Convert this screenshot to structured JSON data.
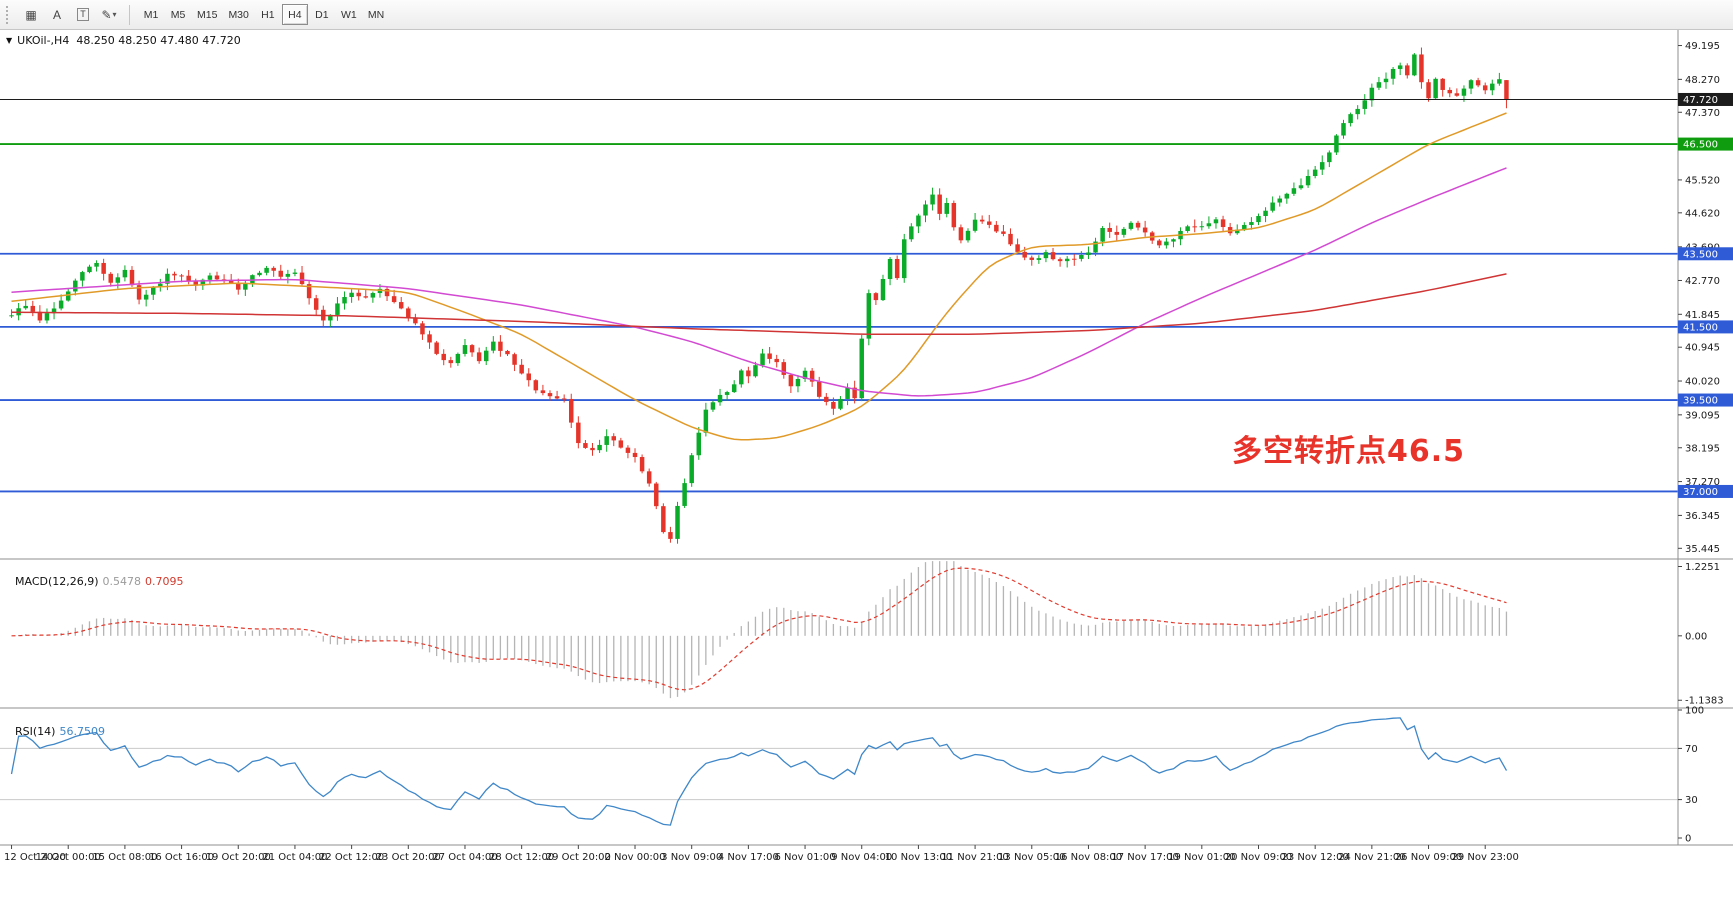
{
  "toolbar": {
    "icons": [
      {
        "name": "windows-grid-icon",
        "glyph": "▦"
      },
      {
        "name": "cursor-tool-icon",
        "glyph": "A"
      },
      {
        "name": "text-tool-icon",
        "glyph": "T"
      },
      {
        "name": "draw-tool-icon",
        "glyph": "✎"
      },
      {
        "name": "dropdown-caret-icon",
        "glyph": "▾"
      }
    ],
    "timeframes": [
      "M1",
      "M5",
      "M15",
      "M30",
      "H1",
      "H4",
      "D1",
      "W1",
      "MN"
    ],
    "selected_timeframe": "H4"
  },
  "chart": {
    "dropdown_glyph": "▼",
    "symbol_ohlc_label": "UKOil-,H4  48.250 48.250 47.480 47.720",
    "annotation": "多空转折点46.5"
  },
  "chart_data": {
    "type": "candlestick",
    "symbol": "UKOil-",
    "timeframe": "H4",
    "current_ohlc": {
      "open": 48.25,
      "high": 48.25,
      "low": 47.48,
      "close": 47.72
    },
    "bar_count": 212,
    "bars_per_label": 8,
    "price_range": [
      35.18,
      49.62
    ],
    "price_axis_ticks": [
      "49.195",
      "48.270",
      "47.370",
      "45.520",
      "44.620",
      "43.690",
      "42.770",
      "41.845",
      "40.945",
      "40.020",
      "39.095",
      "38.195",
      "37.270",
      "36.345",
      "35.445"
    ],
    "time_labels": [
      "12 Oct 2020",
      "14 Oct 00:00",
      "15 Oct 08:00",
      "16 Oct 16:00",
      "19 Oct 20:00",
      "21 Oct 04:00",
      "22 Oct 12:00",
      "23 Oct 20:00",
      "27 Oct 04:00",
      "28 Oct 12:00",
      "29 Oct 20:00",
      "2 Nov 00:00",
      "3 Nov 09:00",
      "4 Nov 17:00",
      "6 Nov 01:00",
      "9 Nov 04:00",
      "10 Nov 13:00",
      "11 Nov 21:00",
      "13 Nov 05:00",
      "16 Nov 08:00",
      "17 Nov 17:00",
      "19 Nov 01:00",
      "20 Nov 09:00",
      "23 Nov 12:00",
      "24 Nov 21:00",
      "26 Nov 09:00",
      "29 Nov 23:00"
    ],
    "price_path_anchors": [
      [
        0,
        41.85
      ],
      [
        2,
        42.1
      ],
      [
        4,
        41.7
      ],
      [
        6,
        42.0
      ],
      [
        8,
        42.45
      ],
      [
        10,
        43.0
      ],
      [
        12,
        43.25
      ],
      [
        14,
        42.7
      ],
      [
        16,
        43.05
      ],
      [
        18,
        42.2
      ],
      [
        20,
        42.55
      ],
      [
        22,
        42.9
      ],
      [
        24,
        42.85
      ],
      [
        26,
        42.6
      ],
      [
        28,
        42.9
      ],
      [
        30,
        42.75
      ],
      [
        32,
        42.55
      ],
      [
        34,
        42.9
      ],
      [
        36,
        43.15
      ],
      [
        38,
        42.85
      ],
      [
        40,
        42.95
      ],
      [
        42,
        42.3
      ],
      [
        44,
        41.65
      ],
      [
        46,
        42.1
      ],
      [
        48,
        42.45
      ],
      [
        50,
        42.3
      ],
      [
        52,
        42.55
      ],
      [
        54,
        42.2
      ],
      [
        56,
        41.8
      ],
      [
        58,
        41.3
      ],
      [
        60,
        40.75
      ],
      [
        62,
        40.5
      ],
      [
        64,
        40.95
      ],
      [
        66,
        40.6
      ],
      [
        68,
        41.05
      ],
      [
        70,
        40.7
      ],
      [
        72,
        40.2
      ],
      [
        74,
        39.8
      ],
      [
        76,
        39.55
      ],
      [
        78,
        39.5
      ],
      [
        80,
        38.3
      ],
      [
        82,
        38.15
      ],
      [
        84,
        38.5
      ],
      [
        86,
        38.2
      ],
      [
        88,
        37.9
      ],
      [
        90,
        37.2
      ],
      [
        92,
        35.9
      ],
      [
        93,
        35.75
      ],
      [
        94,
        36.6
      ],
      [
        95,
        37.2
      ],
      [
        96,
        38.0
      ],
      [
        98,
        39.2
      ],
      [
        100,
        39.6
      ],
      [
        102,
        39.9
      ],
      [
        103,
        40.3
      ],
      [
        104,
        40.15
      ],
      [
        106,
        40.8
      ],
      [
        108,
        40.5
      ],
      [
        110,
        39.9
      ],
      [
        112,
        40.3
      ],
      [
        114,
        39.6
      ],
      [
        116,
        39.3
      ],
      [
        118,
        39.8
      ],
      [
        119,
        39.6
      ],
      [
        120,
        41.2
      ],
      [
        121,
        42.4
      ],
      [
        122,
        42.2
      ],
      [
        124,
        43.4
      ],
      [
        125,
        42.8
      ],
      [
        126,
        43.9
      ],
      [
        128,
        44.5
      ],
      [
        130,
        45.1
      ],
      [
        131,
        44.6
      ],
      [
        132,
        44.9
      ],
      [
        133,
        44.2
      ],
      [
        134,
        43.9
      ],
      [
        136,
        44.4
      ],
      [
        138,
        44.3
      ],
      [
        140,
        44.0
      ],
      [
        142,
        43.6
      ],
      [
        144,
        43.3
      ],
      [
        146,
        43.5
      ],
      [
        148,
        43.3
      ],
      [
        150,
        43.4
      ],
      [
        152,
        43.5
      ],
      [
        154,
        44.2
      ],
      [
        156,
        44.0
      ],
      [
        158,
        44.3
      ],
      [
        160,
        44.1
      ],
      [
        162,
        43.7
      ],
      [
        164,
        43.9
      ],
      [
        166,
        44.3
      ],
      [
        168,
        44.2
      ],
      [
        170,
        44.4
      ],
      [
        172,
        44.1
      ],
      [
        174,
        44.3
      ],
      [
        176,
        44.5
      ],
      [
        178,
        44.9
      ],
      [
        180,
        45.1
      ],
      [
        182,
        45.4
      ],
      [
        184,
        45.8
      ],
      [
        186,
        46.3
      ],
      [
        188,
        47.1
      ],
      [
        190,
        47.5
      ],
      [
        192,
        48.0
      ],
      [
        194,
        48.3
      ],
      [
        196,
        48.7
      ],
      [
        197,
        48.4
      ],
      [
        198,
        48.9
      ],
      [
        199,
        48.2
      ],
      [
        200,
        47.7
      ],
      [
        201,
        48.3
      ],
      [
        202,
        48.0
      ],
      [
        204,
        47.8
      ],
      [
        206,
        48.2
      ],
      [
        208,
        48.0
      ],
      [
        210,
        48.25
      ],
      [
        211,
        47.72
      ]
    ],
    "horizontal_lines": [
      {
        "price": 46.5,
        "label": "46.500",
        "color": "#0f9d0f"
      },
      {
        "price": 43.5,
        "label": "43.500",
        "color": "#2f5bd7"
      },
      {
        "price": 41.5,
        "label": "41.500",
        "color": "#2f5bd7"
      },
      {
        "price": 39.5,
        "label": "39.500",
        "color": "#2f5bd7"
      },
      {
        "price": 37.0,
        "label": "37.000",
        "color": "#2f5bd7"
      }
    ],
    "bid_line": {
      "price": 47.72,
      "label": "47.720",
      "color": "#1c1c1c"
    },
    "moving_averages": [
      {
        "name": "ma-fast",
        "color": "#e09a28",
        "anchors": [
          [
            0,
            42.2
          ],
          [
            16,
            42.55
          ],
          [
            32,
            42.7
          ],
          [
            48,
            42.55
          ],
          [
            56,
            42.45
          ],
          [
            64,
            41.9
          ],
          [
            72,
            41.3
          ],
          [
            80,
            40.4
          ],
          [
            88,
            39.5
          ],
          [
            96,
            38.75
          ],
          [
            102,
            38.4
          ],
          [
            108,
            38.45
          ],
          [
            114,
            38.8
          ],
          [
            120,
            39.3
          ],
          [
            126,
            40.3
          ],
          [
            132,
            41.9
          ],
          [
            138,
            43.2
          ],
          [
            144,
            43.7
          ],
          [
            152,
            43.75
          ],
          [
            160,
            43.95
          ],
          [
            168,
            44.05
          ],
          [
            176,
            44.2
          ],
          [
            184,
            44.7
          ],
          [
            192,
            45.6
          ],
          [
            200,
            46.5
          ],
          [
            211,
            47.35
          ]
        ]
      },
      {
        "name": "ma-mid",
        "color": "#d24ad2",
        "anchors": [
          [
            0,
            42.45
          ],
          [
            24,
            42.75
          ],
          [
            40,
            42.8
          ],
          [
            56,
            42.55
          ],
          [
            72,
            42.1
          ],
          [
            88,
            41.5
          ],
          [
            96,
            41.1
          ],
          [
            104,
            40.55
          ],
          [
            112,
            40.1
          ],
          [
            120,
            39.75
          ],
          [
            128,
            39.6
          ],
          [
            136,
            39.7
          ],
          [
            144,
            40.1
          ],
          [
            152,
            40.8
          ],
          [
            160,
            41.6
          ],
          [
            168,
            42.3
          ],
          [
            176,
            42.95
          ],
          [
            184,
            43.6
          ],
          [
            192,
            44.35
          ],
          [
            200,
            45.0
          ],
          [
            211,
            45.85
          ]
        ]
      },
      {
        "name": "ma-slow",
        "color": "#d03434",
        "anchors": [
          [
            0,
            41.9
          ],
          [
            24,
            41.87
          ],
          [
            48,
            41.8
          ],
          [
            72,
            41.65
          ],
          [
            96,
            41.45
          ],
          [
            120,
            41.3
          ],
          [
            136,
            41.3
          ],
          [
            152,
            41.4
          ],
          [
            168,
            41.6
          ],
          [
            184,
            41.95
          ],
          [
            200,
            42.5
          ],
          [
            211,
            42.95
          ]
        ]
      }
    ],
    "macd": {
      "label": "MACD(12,26,9)",
      "value_main": "0.5478",
      "value_signal": "0.7095",
      "fast": 12,
      "slow": 26,
      "signal": 9,
      "range": [
        -1.24,
        1.34
      ],
      "axis_ticks": [
        "1.2251",
        "0.00",
        "-1.1383"
      ]
    },
    "rsi": {
      "label": "RSI(14)",
      "value": "56.7509",
      "period": 14,
      "levels": [
        70,
        30
      ],
      "axis_ticks": [
        "100",
        "70",
        "30",
        "0"
      ]
    },
    "colors": {
      "up": "#0aab28",
      "down": "#e5352a",
      "macd_histogram": "#b5b5b5",
      "macd_signal": "#e23b2e",
      "rsi_line": "#3f87c8",
      "annotation": "#e8332a"
    }
  }
}
